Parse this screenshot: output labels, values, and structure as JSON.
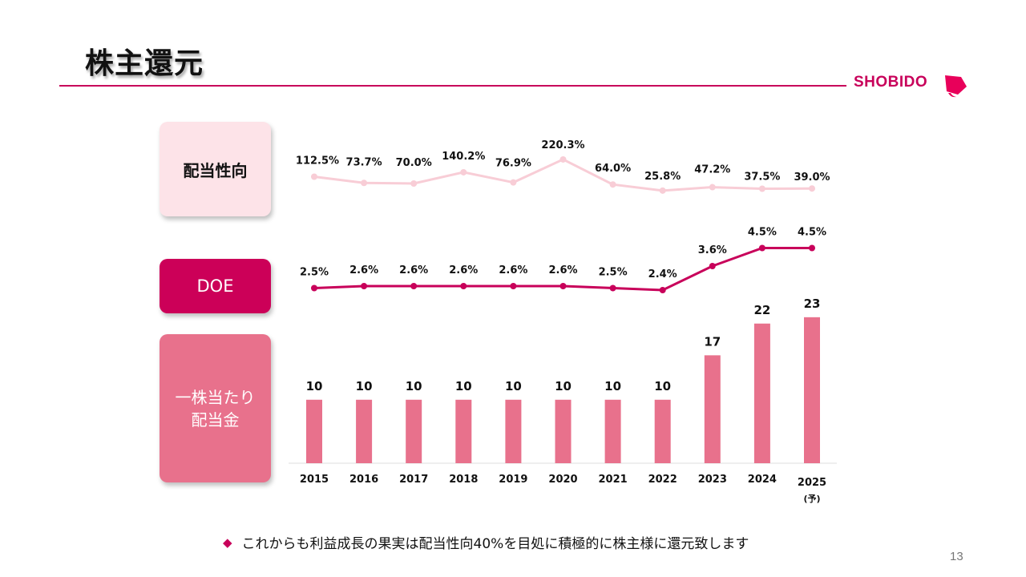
{
  "header": {
    "title": "株主還元",
    "logo_text": "SHOBIDO"
  },
  "labels": {
    "payout": "配当性向",
    "doe": "DOE",
    "dps_line1": "一株当たり",
    "dps_line2": "配当金"
  },
  "footer": {
    "bullet": "◆",
    "text": "これからも利益成長の果実は配当性向40%を目処に積極的に株主様に還元致します"
  },
  "page_number": "13",
  "colors": {
    "accent": "#c8005a",
    "payout_line": "#f8cdd6",
    "doe_line": "#c8005a",
    "bar": "#e8718c"
  },
  "chart_data": {
    "type": "bar",
    "categories": [
      "2015",
      "2016",
      "2017",
      "2018",
      "2019",
      "2020",
      "2021",
      "2022",
      "2023",
      "2024",
      "2025"
    ],
    "category_sublabels": [
      "",
      "",
      "",
      "",
      "",
      "",
      "",
      "",
      "",
      "",
      "(予)"
    ],
    "series": [
      {
        "name": "配当性向",
        "type": "line",
        "values": [
          112.5,
          73.7,
          70.0,
          140.2,
          76.9,
          220.3,
          64.0,
          25.8,
          47.2,
          37.5,
          39.0
        ],
        "labels": [
          "112.5%",
          "73.7%",
          "70.0%",
          "140.2%",
          "76.9%",
          "220.3%",
          "64.0%",
          "25.8%",
          "47.2%",
          "37.5%",
          "39.0%"
        ]
      },
      {
        "name": "DOE",
        "type": "line",
        "values": [
          2.5,
          2.6,
          2.6,
          2.6,
          2.6,
          2.6,
          2.5,
          2.4,
          3.6,
          4.5,
          4.5
        ],
        "labels": [
          "2.5%",
          "2.6%",
          "2.6%",
          "2.6%",
          "2.6%",
          "2.6%",
          "2.5%",
          "2.4%",
          "3.6%",
          "4.5%",
          "4.5%"
        ]
      },
      {
        "name": "一株当たり配当金",
        "type": "bar",
        "values": [
          10,
          10,
          10,
          10,
          10,
          10,
          10,
          10,
          17,
          22,
          23
        ],
        "labels": [
          "10",
          "10",
          "10",
          "10",
          "10",
          "10",
          "10",
          "10",
          "17",
          "22",
          "23"
        ]
      }
    ],
    "grid": false,
    "legend": "none"
  }
}
